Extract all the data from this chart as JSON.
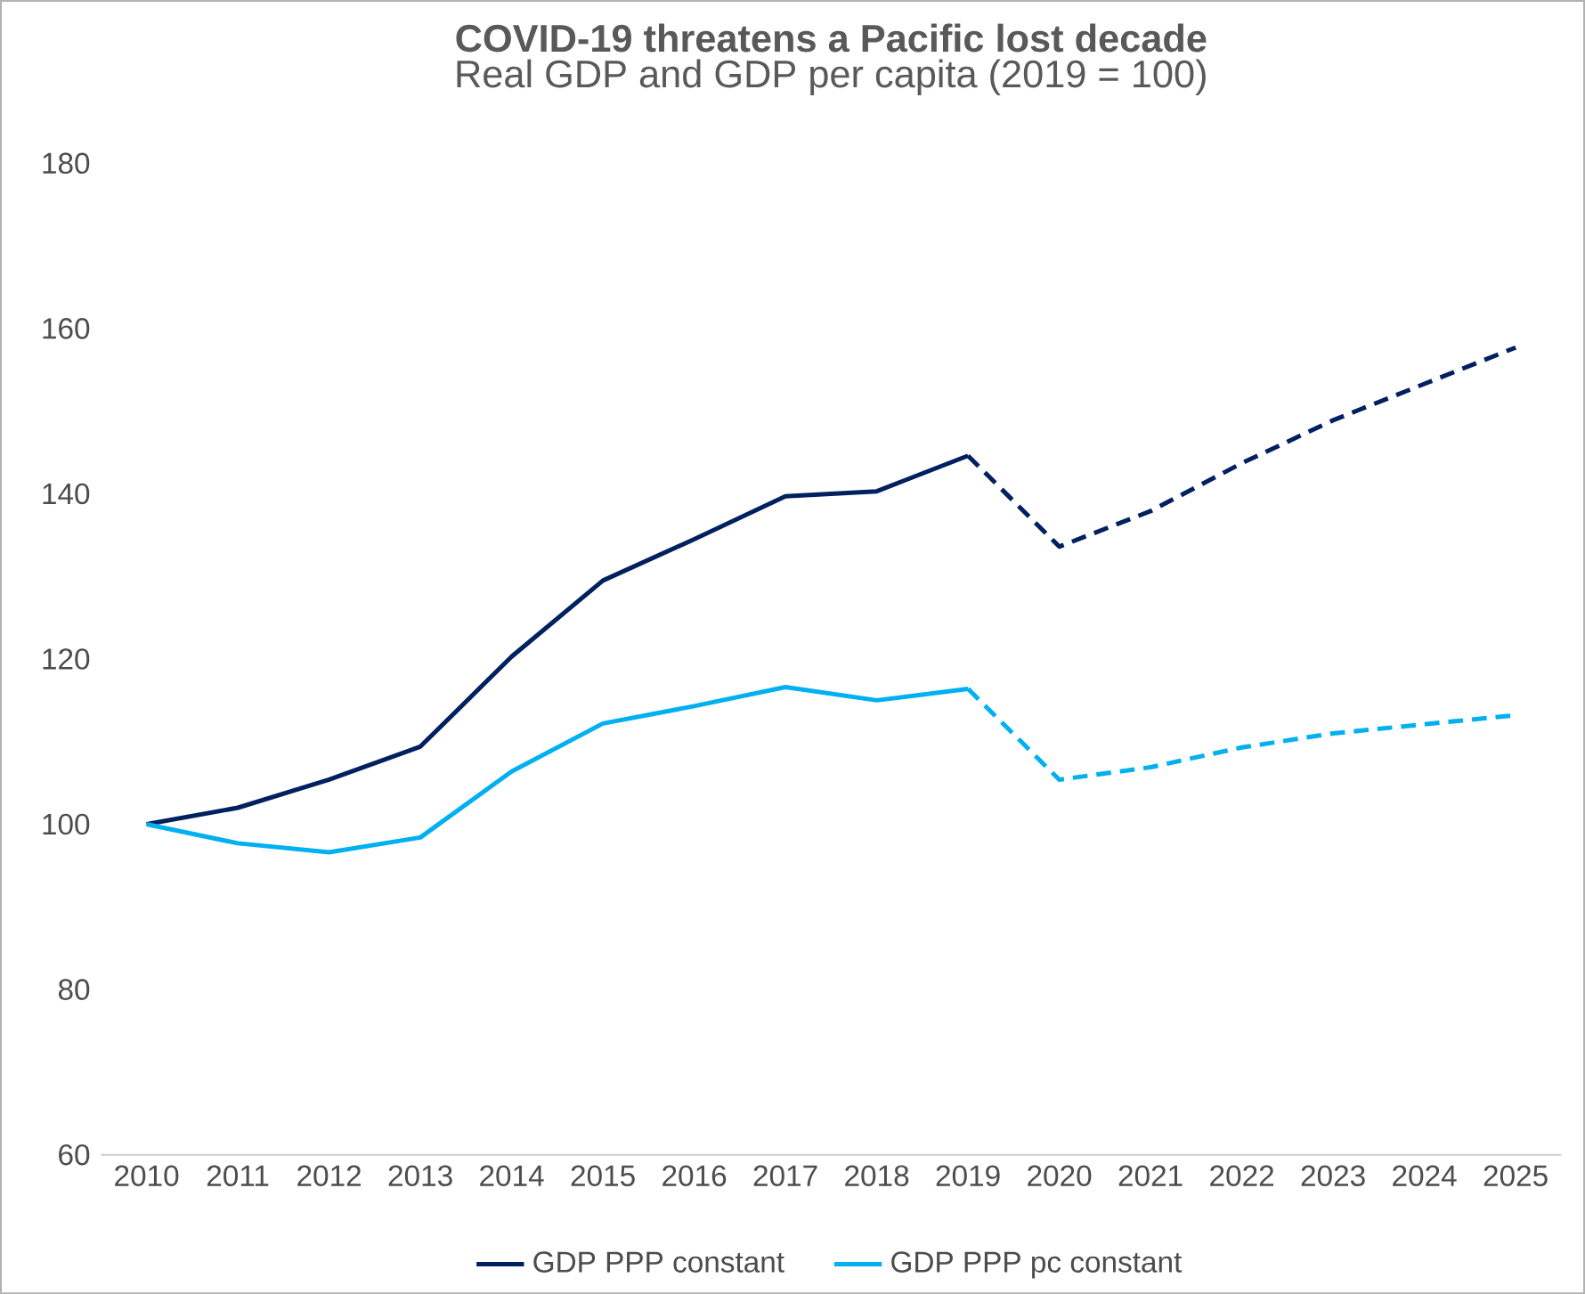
{
  "chart_data": {
    "type": "line",
    "title": "COVID-19 threatens a Pacific lost decade",
    "subtitle": "Real GDP and GDP per capita (2019 = 100)",
    "categories": [
      "2010",
      "2011",
      "2012",
      "2013",
      "2014",
      "2015",
      "2016",
      "2017",
      "2018",
      "2019",
      "2020",
      "2021",
      "2022",
      "2023",
      "2024",
      "2025"
    ],
    "series": [
      {
        "name": "GDP PPP constant",
        "color": "#002060",
        "line_style": "solid",
        "values": [
          100,
          102,
          105.4,
          109.4,
          120.3,
          129.5,
          134.5,
          139.7,
          140.3,
          144.6,
          null,
          null,
          null,
          null,
          null,
          null
        ]
      },
      {
        "name": "GDP PPP pc constant",
        "color": "#00b0f0",
        "line_style": "solid",
        "values": [
          100,
          97.7,
          96.6,
          98.4,
          106.4,
          112.2,
          114.3,
          116.6,
          115,
          116.4,
          null,
          null,
          null,
          null,
          null,
          null
        ]
      },
      {
        "color": "#002060",
        "line_style": "dashed",
        "values": [
          null,
          null,
          null,
          null,
          null,
          null,
          null,
          null,
          null,
          144.6,
          133.6,
          137.9,
          143.7,
          148.9,
          153.3,
          157.7
        ]
      },
      {
        "color": "#00b0f0",
        "line_style": "dashed",
        "values": [
          null,
          null,
          null,
          null,
          null,
          null,
          null,
          null,
          null,
          116.4,
          105.4,
          106.9,
          109.3,
          111,
          112.1,
          113.2
        ]
      }
    ],
    "ylim": [
      60,
      180
    ],
    "yticks": [
      60,
      80,
      100,
      120,
      140,
      160,
      180
    ],
    "grid": false,
    "legend": "bottom",
    "marker": "none"
  }
}
